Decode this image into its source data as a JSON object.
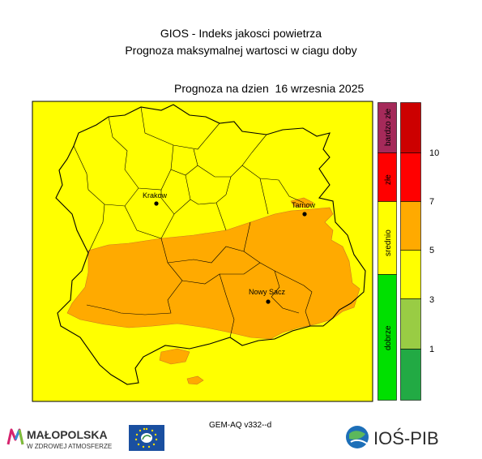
{
  "header": {
    "line1": "GIOS - Indeks jakosci powietrza",
    "line2": "Prognoza maksymalnej wartosci w ciagu doby",
    "forecast": "Prognoza na dzien  16 wrzesnia 2025"
  },
  "map": {
    "cities": [
      {
        "name": "Krakow"
      },
      {
        "name": "Tarnow"
      },
      {
        "name": "Nowy Sacz"
      }
    ]
  },
  "legend": {
    "categories": [
      {
        "label": "bardzo złe",
        "color": "#a52a5a"
      },
      {
        "label": "złe",
        "color": "#ff0000"
      },
      {
        "label": "srednio",
        "color": "#ffff00"
      },
      {
        "label": "dobrze",
        "color": "#00e000"
      }
    ],
    "scale_colors": [
      "#cc0000",
      "#ff0000",
      "#ffaa00",
      "#ffff00",
      "#99cc44",
      "#22aa44"
    ],
    "ticks": [
      "10",
      "7",
      "5",
      "3",
      "1"
    ]
  },
  "footer": {
    "model": "GEM-AQ v332--d",
    "logo_malopolska_title": "MAŁOPOLSKA",
    "logo_malopolska_sub": "W ZDROWEJ ATMOSFERZE",
    "logo_ios": "IOŚ-PIB"
  }
}
